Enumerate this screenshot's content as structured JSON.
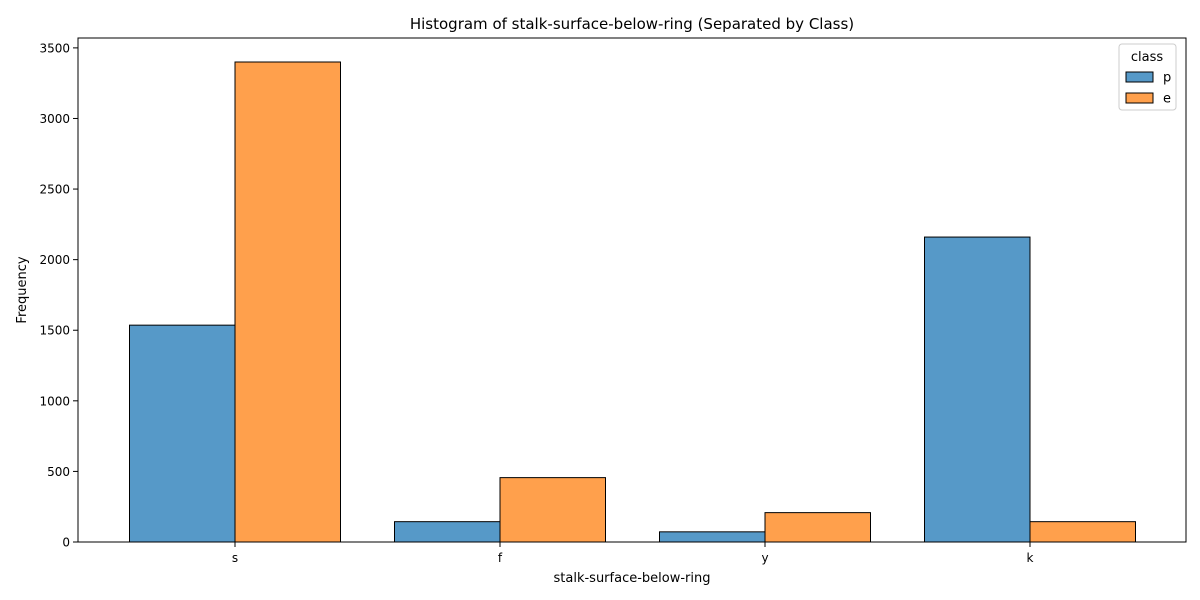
{
  "chart_data": {
    "type": "bar",
    "title": "Histogram of stalk-surface-below-ring (Separated by Class)",
    "xlabel": "stalk-surface-below-ring",
    "ylabel": "Frequency",
    "categories": [
      "s",
      "f",
      "y",
      "k"
    ],
    "series": [
      {
        "name": "p",
        "values": [
          1536,
          144,
          72,
          2160
        ],
        "color": "#5699c8"
      },
      {
        "name": "e",
        "values": [
          3400,
          456,
          208,
          144
        ],
        "color": "#ffa04c"
      }
    ],
    "ylim": [
      0,
      3570
    ],
    "yticks": [
      0,
      500,
      1000,
      1500,
      2000,
      2500,
      3000,
      3500
    ],
    "grid": false,
    "legend": {
      "title": "class",
      "placement": "top-right"
    }
  }
}
